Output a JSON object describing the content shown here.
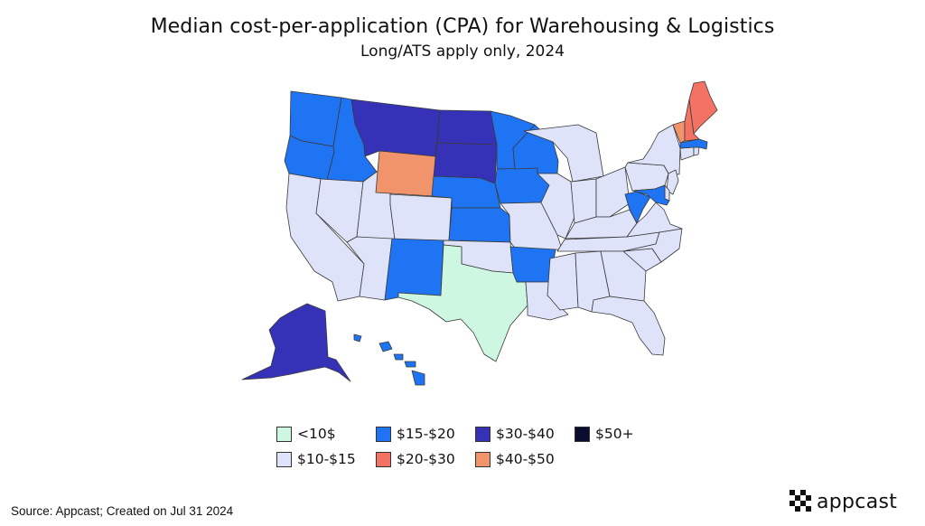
{
  "header": {
    "title": "Median cost-per-application (CPA) for Warehousing & Logistics",
    "subtitle": "Long/ATS apply only, 2024"
  },
  "colors": {
    "lt10": "#cdf7e1",
    "c10_15": "#dee3fa",
    "c15_20": "#1e74f2",
    "c20_30": "#f47263",
    "c30_40": "#3532b8",
    "c40_50": "#f1936b",
    "c50plus": "#0a0d2e",
    "border": "#3a3a3a"
  },
  "legend": [
    {
      "label": "<10$",
      "color": "#cdf7e1"
    },
    {
      "label": "$10-$15",
      "color": "#dee3fa"
    },
    {
      "label": "$15-$20",
      "color": "#1e74f2"
    },
    {
      "label": "$20-$30",
      "color": "#f47263"
    },
    {
      "label": "$30-$40",
      "color": "#3532b8"
    },
    {
      "label": "$40-$50",
      "color": "#f1936b"
    },
    {
      "label": "$50+",
      "color": "#0a0d2e"
    }
  ],
  "map_data": {
    "WA": "$15-$20",
    "OR": "$15-$20",
    "ID": "$15-$20",
    "MN": "$15-$20",
    "WI": "$15-$20",
    "IA": "$15-$20",
    "NE": "$15-$20",
    "KS": "$15-$20",
    "NM": "$15-$20",
    "AR": "$15-$20",
    "WV": "$15-$20",
    "MA": "$15-$20",
    "MD": "$15-$20",
    "HI": "$15-$20",
    "MT": "$30-$40",
    "ND": "$30-$40",
    "SD": "$30-$40",
    "AK": "$30-$40",
    "WY": "$40-$50",
    "VT": "$40-$50",
    "ME": "$20-$30",
    "NH": "$20-$30",
    "TX": "<10$"
  },
  "footer": {
    "source": "Source: Appcast; Created on Jul 31 2024",
    "logo": "appcast"
  }
}
